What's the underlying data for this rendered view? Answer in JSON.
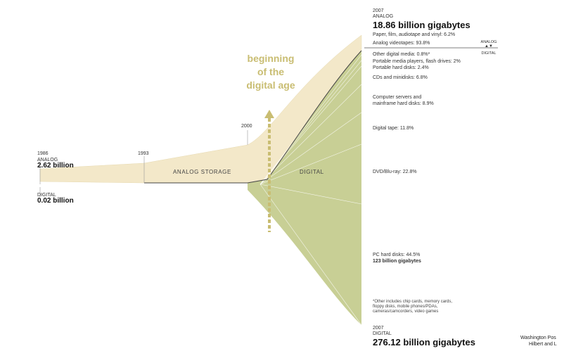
{
  "chart_data": {
    "type": "area",
    "title": "",
    "annotation": [
      "beginning",
      "of the",
      "digital age"
    ],
    "x_ticks": [
      "1986",
      "1993",
      "2000",
      "2007"
    ],
    "region_labels": {
      "analog": "ANALOG STORAGE",
      "digital": "DIGITAL"
    },
    "start": {
      "year": "1986",
      "analog_label": "ANALOG",
      "analog_value": "2.62 billion",
      "digital_label": "DIGITAL",
      "digital_value": "0.02 billion"
    },
    "end_analog": {
      "year": "2007",
      "label": "ANALOG",
      "value": "18.86 billion gigabytes"
    },
    "end_digital": {
      "year": "2007",
      "label": "DIGITAL",
      "value": "276.12 billion gigabytes"
    },
    "divider": {
      "top": "ANALOG",
      "bottom": "DIGITAL"
    },
    "analog_categories": [
      {
        "label": "Paper, film, audiotape and vinyl: 6.2%",
        "share": 6.2
      },
      {
        "label": "Analog videotapes: 93.8%",
        "share": 93.8
      }
    ],
    "digital_categories": [
      {
        "label": "Other digital media: 0.8%*",
        "share": 0.8
      },
      {
        "label": "Portable media players, flash drives: 2%",
        "share": 2
      },
      {
        "label": "Portable hard disks: 2.4%",
        "share": 2.4
      },
      {
        "label": "CDs and minidisks: 6.8%",
        "share": 6.8
      },
      {
        "label": "Computer servers and",
        "label2": "mainframe hard disks: 8.9%",
        "share": 8.9
      },
      {
        "label": "Digital tape: 11.8%",
        "share": 11.8
      },
      {
        "label": "DVD/Blu-ray: 22.8%",
        "share": 22.8
      },
      {
        "label": "PC hard disks: 44.5%",
        "label2": "123 billion gigabytes",
        "share": 44.5
      }
    ],
    "footnote": [
      "*Other includes chip cards, memory cards,",
      "floppy disks, mobile phones/PDAs,",
      "cameras/camcorders, video games"
    ],
    "source": [
      "Washington Pos",
      "Hilbert and L"
    ],
    "colors": {
      "analog": "#f3e8c9",
      "digital": "#c8cf95",
      "divider": "#444444",
      "annotation": "#c9bd72"
    }
  }
}
